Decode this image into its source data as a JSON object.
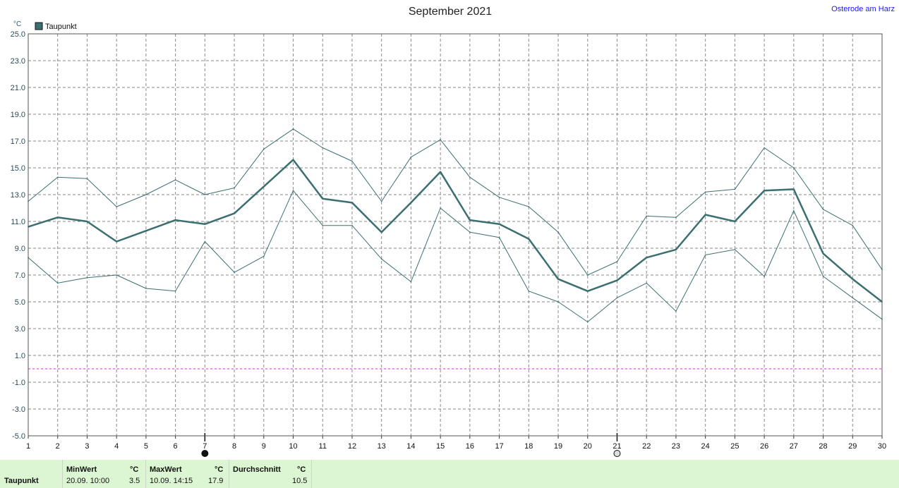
{
  "header": {
    "title": "September 2021",
    "station": "Osterode am Harz",
    "unit": "°C"
  },
  "colors": {
    "series": "#3b6f70",
    "grid": "#8a8a8a",
    "zero_line": "#cc33cc",
    "stats_background": "#dcf5d2"
  },
  "chart_data": {
    "type": "line",
    "title": "September 2021",
    "ylabel": "°C",
    "xlabel": "",
    "ylim": [
      -5.0,
      25.0
    ],
    "yticks": [
      "25.0",
      "23.0",
      "21.0",
      "19.0",
      "17.0",
      "15.0",
      "13.0",
      "11.0",
      "9.0",
      "7.0",
      "5.0",
      "3.0",
      "1.0",
      "-1.0",
      "-3.0",
      "-5.0"
    ],
    "x": [
      1,
      2,
      3,
      4,
      5,
      6,
      7,
      8,
      9,
      10,
      11,
      12,
      13,
      14,
      15,
      16,
      17,
      18,
      19,
      20,
      21,
      22,
      23,
      24,
      25,
      26,
      27,
      28,
      29,
      30
    ],
    "grid": true,
    "legend": {
      "position": "top-left",
      "entries": [
        "Taupunkt"
      ]
    },
    "series": [
      {
        "name": "Taupunkt",
        "role": "mean",
        "values": [
          10.6,
          11.3,
          11.0,
          9.5,
          10.3,
          11.1,
          10.8,
          11.6,
          13.6,
          15.6,
          12.7,
          12.4,
          10.2,
          12.4,
          14.7,
          11.1,
          10.8,
          9.7,
          6.7,
          5.8,
          6.6,
          8.3,
          8.9,
          11.5,
          11.0,
          13.3,
          13.4,
          8.6,
          6.7,
          5.0
        ]
      },
      {
        "role": "max",
        "values": [
          12.5,
          14.3,
          14.2,
          12.1,
          13.0,
          14.1,
          13.0,
          13.5,
          16.4,
          17.9,
          16.5,
          15.5,
          12.5,
          15.8,
          17.1,
          14.3,
          12.8,
          12.1,
          10.2,
          7.0,
          8.0,
          11.4,
          11.3,
          13.2,
          13.4,
          16.5,
          15.0,
          11.9,
          10.7,
          7.4
        ]
      },
      {
        "role": "min",
        "values": [
          8.3,
          6.4,
          6.8,
          7.0,
          6.0,
          5.8,
          9.5,
          7.2,
          8.4,
          13.3,
          10.7,
          10.7,
          8.2,
          6.5,
          12.0,
          10.2,
          9.8,
          5.8,
          5.0,
          3.5,
          5.3,
          6.4,
          4.3,
          8.5,
          8.9,
          6.9,
          11.8,
          6.9,
          5.3,
          3.7
        ]
      }
    ],
    "moon_phases": [
      {
        "day": 7,
        "phase": "new-moon"
      },
      {
        "day": 21,
        "phase": "full-moon"
      }
    ]
  },
  "stats": {
    "row_label": "Taupunkt",
    "min": {
      "header": "MinWert",
      "unit": "°C",
      "datetime": "20.09.  10:00",
      "value": "3.5"
    },
    "max": {
      "header": "MaxWert",
      "unit": "°C",
      "datetime": "10.09.  14:15",
      "value": "17.9"
    },
    "avg": {
      "header": "Durchschnitt",
      "unit": "°C",
      "value": "10.5"
    }
  }
}
